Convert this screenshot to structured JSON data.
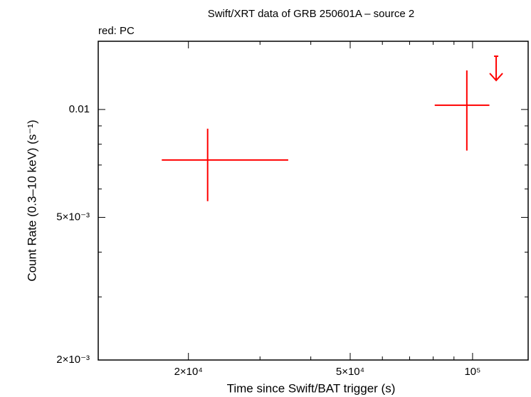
{
  "chart_data": {
    "type": "scatter",
    "title": "Swift/XRT data of GRB 250601A – source 2",
    "subtitle": "red: PC",
    "x_label": "Time since Swift/BAT trigger (s)",
    "y_label": "Count Rate (0.3–10 keV) (s⁻¹)",
    "log_x": true,
    "log_y": true,
    "xlim": [
      12000,
      137000
    ],
    "ylim": [
      0.002,
      0.0155
    ],
    "xticks": [
      {
        "value": 20000,
        "label": "2×10⁴"
      },
      {
        "value": 50000,
        "label": "5×10⁴"
      },
      {
        "value": 100000,
        "label": "10⁵"
      }
    ],
    "xminorticks": [
      30000,
      40000,
      60000,
      70000,
      80000,
      90000
    ],
    "yticks": [
      {
        "value": 0.002,
        "label": "2×10⁻³"
      },
      {
        "value": 0.005,
        "label": "5×10⁻³"
      },
      0.01
    ],
    "yminorticks": [
      0.003,
      0.004,
      0.006,
      0.007,
      0.008,
      0.009
    ],
    "series": [
      {
        "color": "#ff0000",
        "x": [
          22300,
          96800
        ],
        "x_low": [
          17200,
          80700
        ],
        "x_high": [
          35200,
          110000
        ],
        "values": [
          0.00723,
          0.01028
        ],
        "y_low": [
          0.00555,
          0.00768
        ],
        "y_high": [
          0.00884,
          0.01285
        ]
      },
      {
        "color": "#ff0000",
        "upper_limit": true,
        "x": [
          114300
        ],
        "values": [
          0.01408
        ]
      }
    ]
  }
}
